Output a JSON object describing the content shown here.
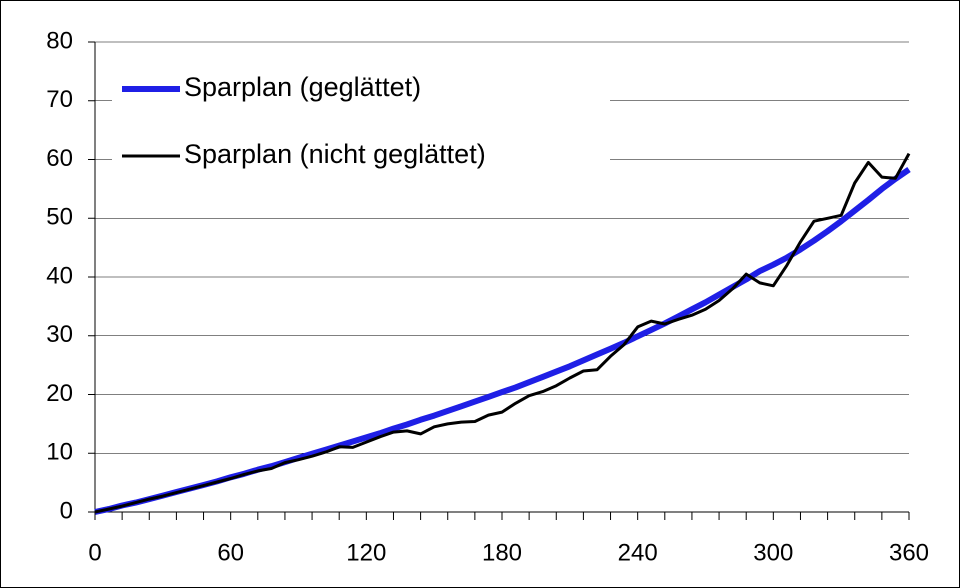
{
  "chart_data": {
    "type": "line",
    "x": [
      0,
      6,
      12,
      18,
      24,
      30,
      36,
      42,
      48,
      54,
      60,
      66,
      72,
      78,
      84,
      90,
      96,
      102,
      108,
      114,
      120,
      126,
      132,
      138,
      144,
      150,
      156,
      162,
      168,
      174,
      180,
      186,
      192,
      198,
      204,
      210,
      216,
      222,
      228,
      234,
      240,
      246,
      252,
      258,
      264,
      270,
      276,
      282,
      288,
      294,
      300,
      306,
      312,
      318,
      324,
      330,
      336,
      342,
      348,
      354,
      360
    ],
    "series": [
      {
        "name": "Sparplan (geglättet)",
        "color": "#1f1fe6",
        "width": 6,
        "values": [
          0,
          0.5,
          1.1,
          1.6,
          2.2,
          2.8,
          3.4,
          4,
          4.6,
          5.2,
          5.9,
          6.5,
          7.2,
          7.8,
          8.5,
          9.2,
          9.9,
          10.6,
          11.3,
          12,
          12.7,
          13.4,
          14.2,
          14.9,
          15.7,
          16.4,
          17.2,
          18,
          18.8,
          19.6,
          20.4,
          21.2,
          22.1,
          23,
          23.9,
          24.8,
          25.8,
          26.8,
          27.8,
          28.8,
          29.9,
          31,
          32.1,
          33.3,
          34.5,
          35.7,
          37,
          38.3,
          39.6,
          41,
          42.1,
          43.3,
          44.7,
          46.2,
          47.8,
          49.5,
          51.3,
          53.1,
          55,
          56.7,
          58.3
        ]
      },
      {
        "name": "Sparplan (nicht geglättet)",
        "color": "#000000",
        "width": 3,
        "values": [
          0,
          0.5,
          1,
          1.6,
          2.2,
          2.7,
          3.3,
          3.9,
          4.5,
          5.1,
          5.7,
          6.4,
          7,
          7.4,
          8.4,
          8.9,
          9.5,
          10.2,
          11.1,
          11,
          11.9,
          12.8,
          13.6,
          13.8,
          13.3,
          14.5,
          15,
          15.3,
          15.4,
          16.5,
          17,
          18.5,
          19.8,
          20.5,
          21.5,
          22.8,
          24,
          24.2,
          26.5,
          28.5,
          31.5,
          32.5,
          32,
          32.8,
          33.5,
          34.5,
          36,
          38,
          40.5,
          39,
          38.5,
          42,
          46,
          49.5,
          50,
          50.5,
          56,
          59.5,
          57,
          56.8,
          61
        ]
      }
    ],
    "xlim": [
      0,
      360
    ],
    "xticks": [
      0,
      60,
      120,
      180,
      240,
      300,
      360
    ],
    "ylim": [
      0,
      80
    ],
    "yticks": [
      0,
      10,
      20,
      30,
      40,
      50,
      60,
      70,
      80
    ],
    "grid": true,
    "legend": "upper left"
  }
}
